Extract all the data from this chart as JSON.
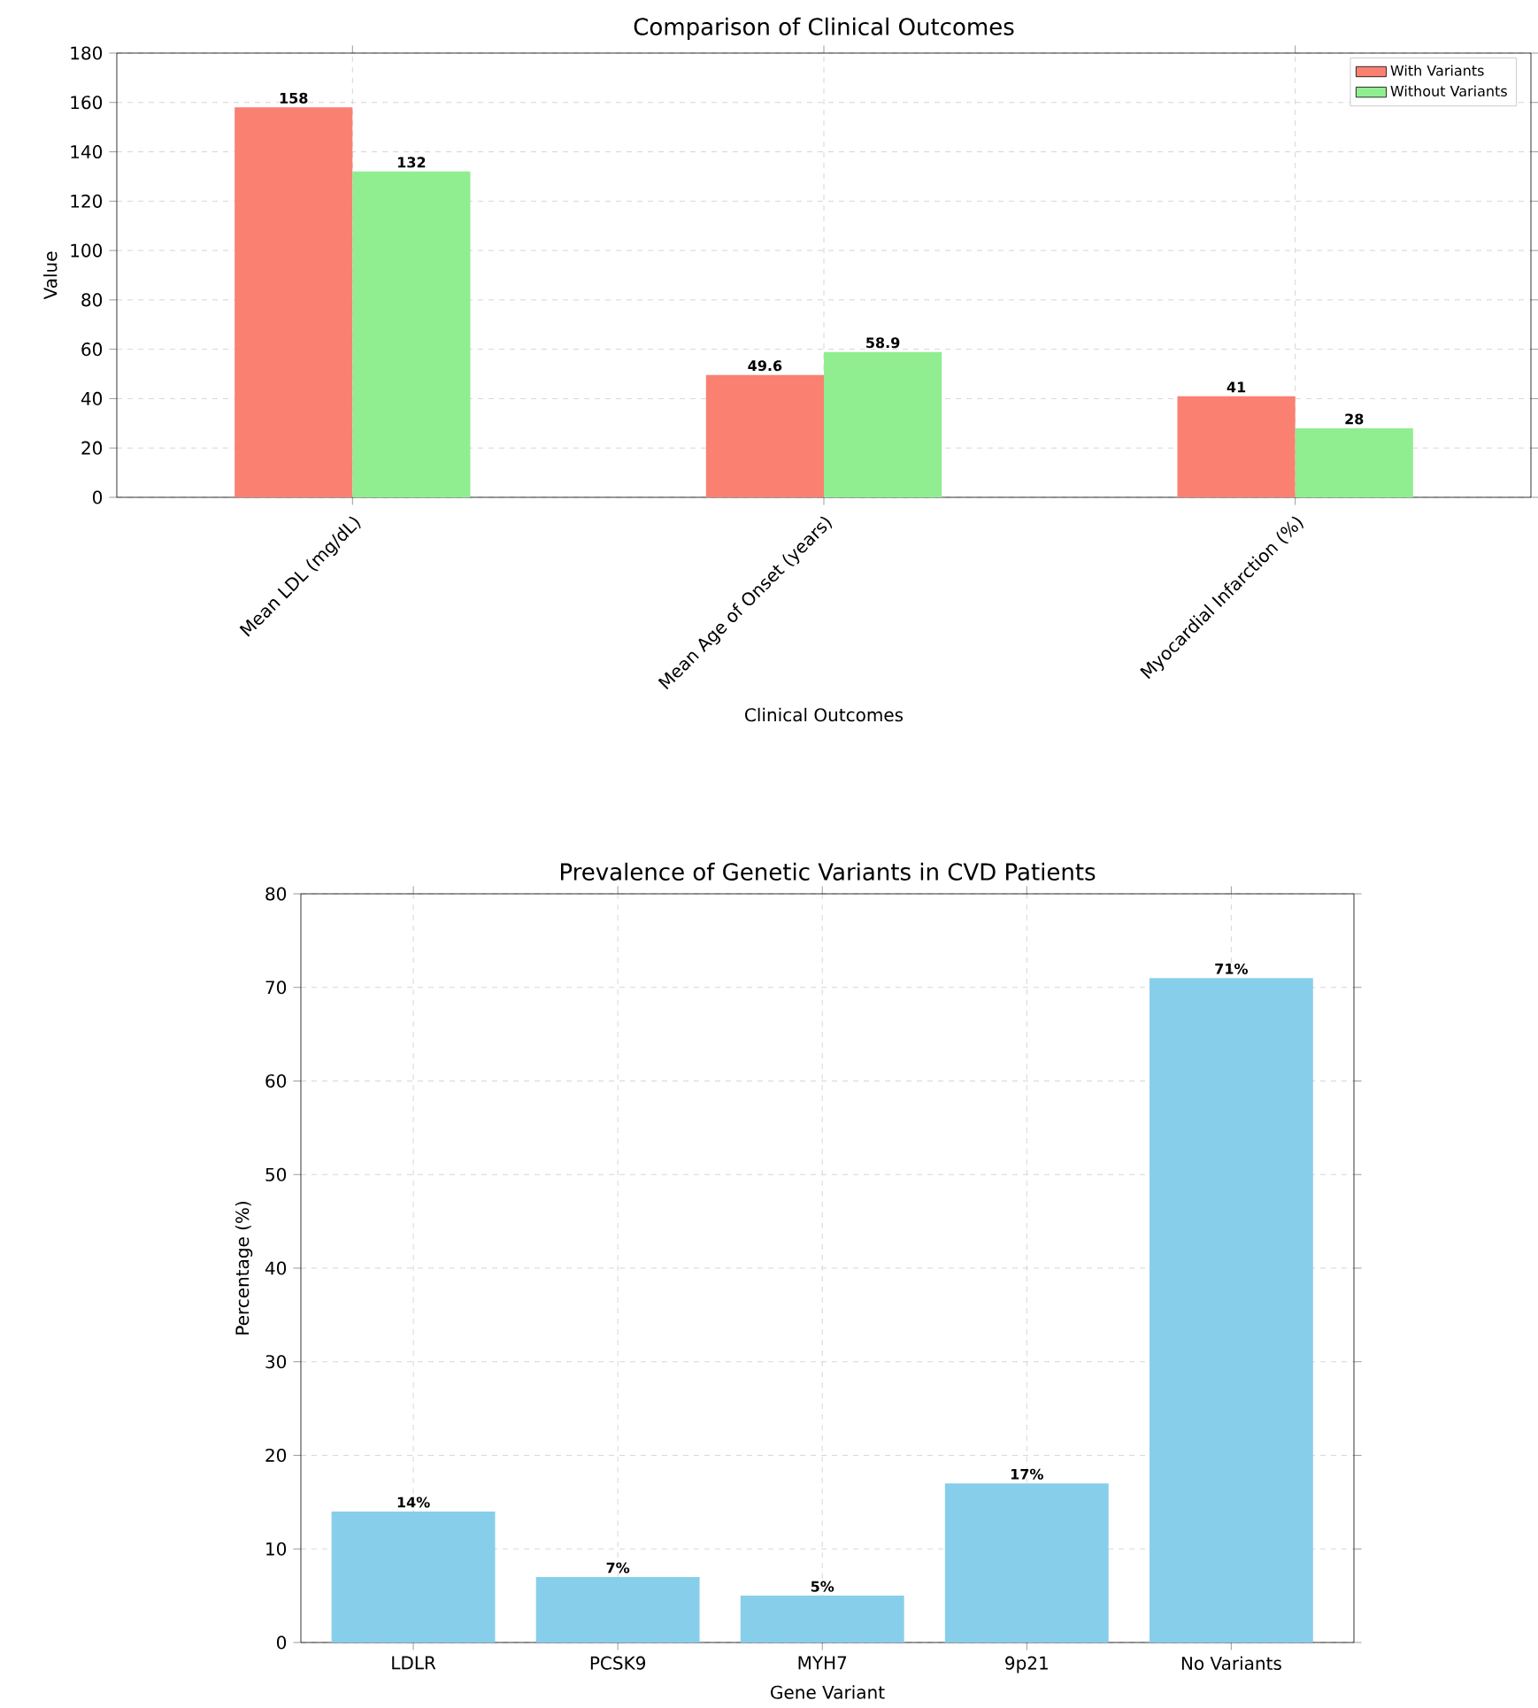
{
  "chart_data": [
    {
      "type": "bar",
      "title": "Comparison of Clinical Outcomes",
      "xlabel": "Clinical Outcomes",
      "ylabel": "Value",
      "categories": [
        "Mean LDL (mg/dL)",
        "Mean Age of Onset (years)",
        "Myocardial Infarction (%)"
      ],
      "series": [
        {
          "name": "With Variants",
          "color": "#fa8072",
          "values": [
            158,
            49.6,
            41
          ]
        },
        {
          "name": "Without Variants",
          "color": "#90ee90",
          "values": [
            132,
            58.9,
            28
          ]
        }
      ],
      "ylim": [
        0,
        180
      ],
      "yticks": [
        0,
        20,
        40,
        60,
        80,
        100,
        120,
        140,
        160,
        180
      ],
      "grid": true,
      "legend": "top right",
      "data_labels": true
    },
    {
      "type": "bar",
      "title": "Prevalence of Genetic Variants in CVD Patients",
      "xlabel": "Gene Variant",
      "ylabel": "Percentage (%)",
      "categories": [
        "LDLR",
        "PCSK9",
        "MYH7",
        "9p21",
        "No Variants"
      ],
      "values": [
        14,
        7,
        5,
        17,
        71
      ],
      "color": "#87ceeb",
      "value_labels": [
        "14%",
        "7%",
        "5%",
        "17%",
        "71%"
      ],
      "ylim": [
        0,
        80
      ],
      "yticks": [
        0,
        10,
        20,
        30,
        40,
        50,
        60,
        70,
        80
      ],
      "grid": true
    }
  ]
}
